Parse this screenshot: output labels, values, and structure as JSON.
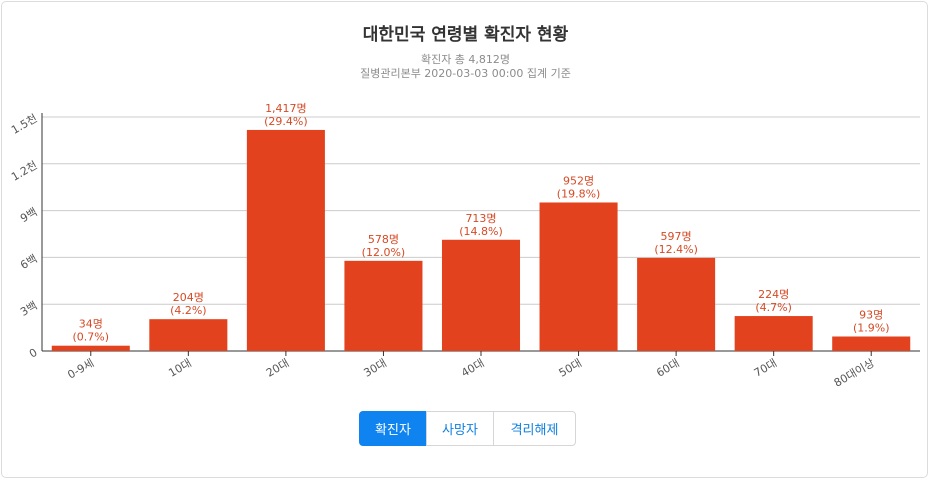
{
  "header": {
    "title": "대한민국 연령별 확진자 현황",
    "subtitle_total": "확진자 총 4,812명",
    "subtitle_source": "질병관리본부 2020-03-03 00:00 집계 기준"
  },
  "tabs": [
    {
      "label": "확진자",
      "active": true
    },
    {
      "label": "사망자",
      "active": false
    },
    {
      "label": "격리해제",
      "active": false
    }
  ],
  "colors": {
    "bar": "#e2431e",
    "label": "#d64a25",
    "grid": "#cccccc",
    "axis": "#333333",
    "tick": "#555555",
    "accent": "#0f84f0"
  },
  "chart_data": {
    "type": "bar",
    "categories": [
      "0-9세",
      "10대",
      "20대",
      "30대",
      "40대",
      "50대",
      "60대",
      "70대",
      "80대이상"
    ],
    "values": [
      34,
      204,
      1417,
      578,
      713,
      952,
      597,
      224,
      93
    ],
    "value_labels": [
      "34명",
      "204명",
      "1,417명",
      "578명",
      "713명",
      "952명",
      "597명",
      "224명",
      "93명"
    ],
    "percent_labels": [
      "(0.7%)",
      "(4.2%)",
      "(29.4%)",
      "(12.0%)",
      "(14.8%)",
      "(19.8%)",
      "(12.4%)",
      "(4.7%)",
      "(1.9%)"
    ],
    "y_ticks": [
      0,
      300,
      600,
      900,
      1200,
      1500
    ],
    "y_tick_labels": [
      "0",
      "3백",
      "6백",
      "9백",
      "1.2천",
      "1.5천"
    ],
    "ylim": [
      0,
      1500
    ],
    "grid": true,
    "legend": "none"
  }
}
